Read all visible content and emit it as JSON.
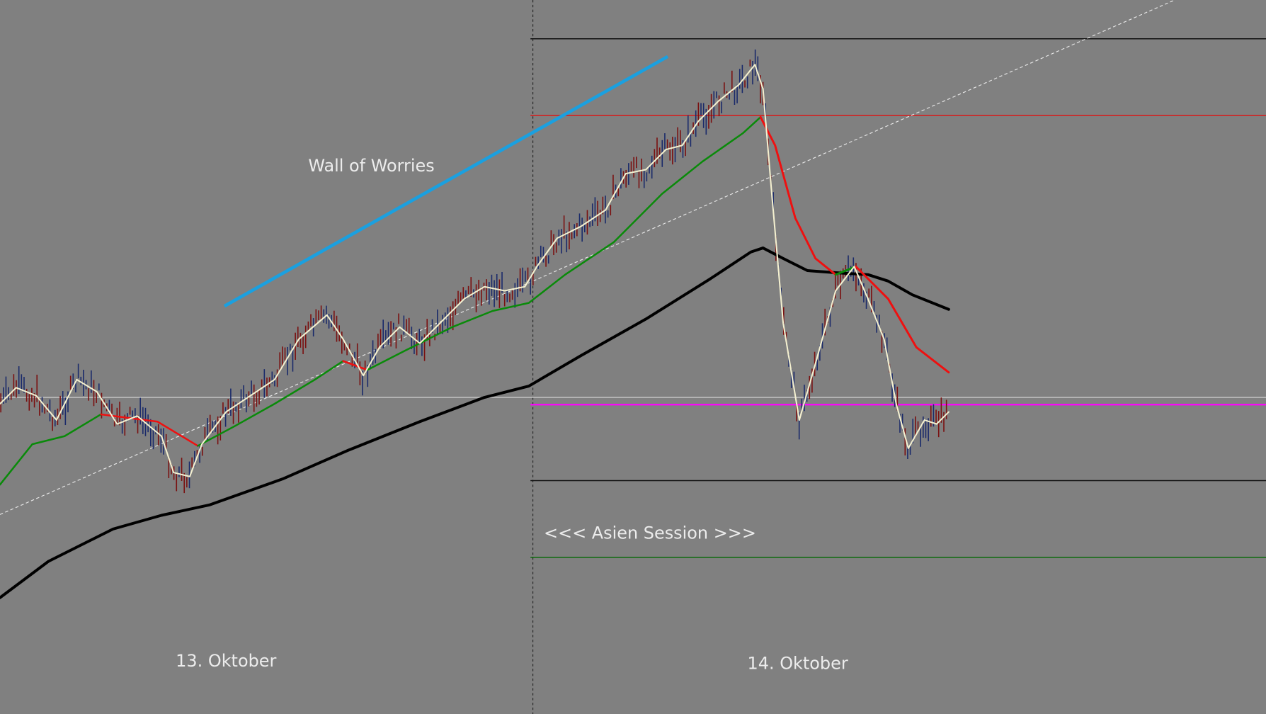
{
  "annotations": {
    "wall": "Wall of Worries",
    "session": "<<< Asien Session >>>"
  },
  "dates": [
    "13. Oktober",
    "14. Oktober"
  ]
}
